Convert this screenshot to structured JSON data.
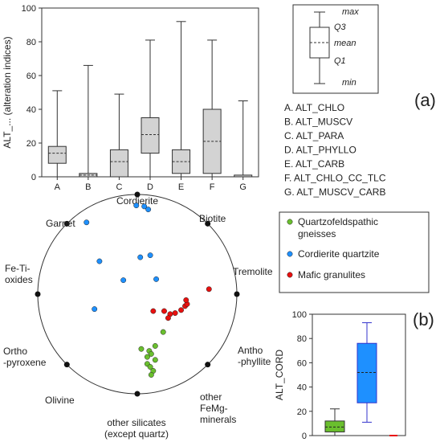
{
  "colors": {
    "box_gray": "#d3d3d3",
    "green": "#6abf2e",
    "blue": "#1e90ff",
    "red": "#e8100f",
    "axis": "#333333",
    "whisker_blue": "#3333cc"
  },
  "panel_labels": {
    "a": "(a)",
    "b": "(b)"
  },
  "chart_data": [
    {
      "type": "box",
      "name": "alteration-indices-boxplot",
      "ylabel": "ALT_... (alteration indices)",
      "ylim": [
        0,
        100
      ],
      "yticks": [
        0,
        20,
        40,
        60,
        80,
        100
      ],
      "categories": [
        "A",
        "B",
        "C",
        "D",
        "E",
        "F",
        "G"
      ],
      "boxes": [
        {
          "min": 0,
          "q1": 8,
          "mean": 14,
          "q3": 18,
          "max": 51
        },
        {
          "min": 0,
          "q1": 0,
          "mean": 1,
          "q3": 2,
          "max": 66
        },
        {
          "min": 0,
          "q1": 0,
          "mean": 9,
          "q3": 16,
          "max": 49
        },
        {
          "min": 0,
          "q1": 14,
          "mean": 25,
          "q3": 35,
          "max": 81
        },
        {
          "min": 0,
          "q1": 2,
          "mean": 9,
          "q3": 16,
          "max": 92
        },
        {
          "min": 0,
          "q1": 2,
          "mean": 21,
          "q3": 40,
          "max": 81
        },
        {
          "min": 0,
          "q1": 0,
          "mean": 0,
          "q3": 1,
          "max": 45
        }
      ],
      "legend_key": {
        "max": "max",
        "q3": "Q3",
        "mean": "mean",
        "q1": "Q1",
        "min": "min"
      },
      "category_legend": [
        "A. ALT_CHLO",
        "B. ALT_MUSCV",
        "C. ALT_PARA",
        "D. ALT_PHYLLO",
        "E. ALT_CARB",
        "F. ALT_CHLO_CC_TLC",
        "G. ALT_MUSCV_CARB"
      ]
    },
    {
      "type": "scatter",
      "name": "radar-ternary-plot",
      "note": "Points given as (r, angle_deg) relative to circle centre; angle 90 = Cordierite (top).",
      "axes": [
        {
          "label": "Cordierite",
          "angle": 90
        },
        {
          "label": "Biotite",
          "angle": 45
        },
        {
          "label": "Tremolite",
          "angle": 0
        },
        {
          "label": "Antho\n-phyllite",
          "angle": -45
        },
        {
          "label": "other silicates\n(except quartz)",
          "angle": -90
        },
        {
          "label": "other\nFeMg-\nminerals",
          "angle": -45
        },
        {
          "label": "Olivine",
          "angle": -135
        },
        {
          "label": "Ortho\n-pyroxene",
          "angle": 180
        },
        {
          "label": "Fe-Ti-\noxides",
          "angle": 180
        },
        {
          "label": "Garnet",
          "angle": 135
        }
      ],
      "series": [
        {
          "name": "Quartzofeldspathic gneisses",
          "color": "green",
          "points": [
            [
              0.26,
              -0.38
            ],
            [
              0.18,
              -0.52
            ],
            [
              0.12,
              -0.57
            ],
            [
              0.14,
              -0.6
            ],
            [
              0.1,
              -0.63
            ],
            [
              0.18,
              -0.66
            ],
            [
              0.1,
              -0.7
            ],
            [
              0.13,
              -0.73
            ],
            [
              0.16,
              -0.77
            ],
            [
              0.14,
              -0.81
            ],
            [
              0.04,
              -0.55
            ]
          ]
        },
        {
          "name": "Cordierite quartzite",
          "color": "blue",
          "points": [
            [
              -0.01,
              0.89
            ],
            [
              0.07,
              0.88
            ],
            [
              0.11,
              0.85
            ],
            [
              -0.51,
              0.72
            ],
            [
              0.03,
              0.37
            ],
            [
              0.13,
              0.39
            ],
            [
              -0.14,
              0.14
            ],
            [
              0.19,
              0.15
            ],
            [
              -0.38,
              0.33
            ],
            [
              -0.43,
              -0.15
            ]
          ]
        },
        {
          "name": "Mafic granulites",
          "color": "red",
          "points": [
            [
              0.72,
              0.05
            ],
            [
              0.16,
              -0.17
            ],
            [
              0.27,
              -0.17
            ],
            [
              0.33,
              -0.2
            ],
            [
              0.38,
              -0.19
            ],
            [
              0.44,
              -0.16
            ],
            [
              0.48,
              -0.12
            ],
            [
              0.5,
              -0.1
            ],
            [
              0.49,
              -0.06
            ],
            [
              0.31,
              -0.24
            ]
          ]
        }
      ],
      "legend": [
        {
          "label": "Quartzofeldspathic\ngneisses",
          "color": "green"
        },
        {
          "label": "Cordierite quartzite",
          "color": "blue"
        },
        {
          "label": "Mafic granulites",
          "color": "red"
        }
      ]
    },
    {
      "type": "box",
      "name": "alt-cord-boxplot",
      "ylabel": "ALT_CORD",
      "ylim": [
        0,
        100
      ],
      "yticks": [
        0,
        20,
        40,
        60,
        80,
        100
      ],
      "boxes": [
        {
          "group": "Quartzofeldspathic gneisses",
          "color": "green",
          "min": 0,
          "q1": 3,
          "mean": 7,
          "q3": 12,
          "max": 22
        },
        {
          "group": "Cordierite quartzite",
          "color": "blue",
          "min": 11,
          "q1": 27,
          "mean": 52,
          "q3": 76,
          "max": 93
        },
        {
          "group": "Mafic granulites",
          "color": "red",
          "min": 0,
          "q1": 0,
          "mean": 0,
          "q3": 0,
          "max": 0
        }
      ]
    }
  ]
}
